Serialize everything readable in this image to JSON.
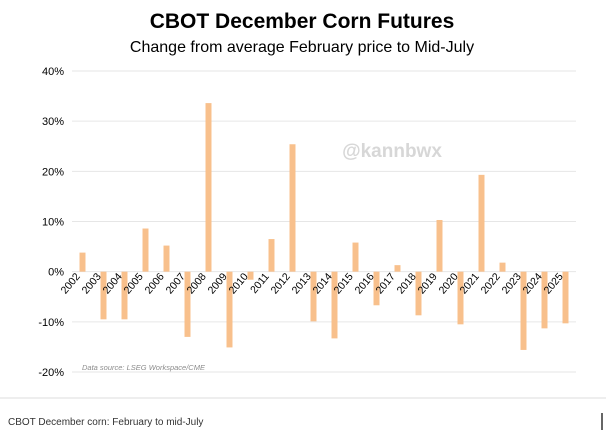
{
  "chart_data": {
    "type": "bar",
    "title": "CBOT December Corn Futures",
    "subtitle": "Change from average February price to Mid-July",
    "categories": [
      "2002",
      "2003",
      "2004",
      "2005",
      "2006",
      "2007",
      "2008",
      "2009",
      "2010",
      "2011",
      "2012",
      "2013",
      "2014",
      "2015",
      "2016",
      "2017",
      "2018",
      "2019",
      "2020",
      "2021",
      "2022",
      "2023",
      "2024",
      "2025"
    ],
    "values": [
      3.8,
      -9.5,
      -9.5,
      8.6,
      5.2,
      -13,
      33.6,
      -15.1,
      -1.6,
      6.5,
      25.4,
      -9.9,
      -13.3,
      5.8,
      -6.7,
      1.3,
      -8.7,
      10.3,
      -10.5,
      19.3,
      1.8,
      -15.6,
      -11.3,
      -10.3
    ],
    "ylim": [
      -20,
      40
    ],
    "yticks": [
      -20,
      -10,
      0,
      10,
      20,
      30,
      40
    ],
    "ytick_labels": [
      "-20%",
      "-10%",
      "0%",
      "10%",
      "20%",
      "30%",
      "40%"
    ],
    "grid": true,
    "bar_color": "#f8c08c",
    "watermark": "@kannbwx",
    "source_note": "Data source: LSEG Workspace/CME"
  },
  "caption": "CBOT December corn: February to mid-July"
}
